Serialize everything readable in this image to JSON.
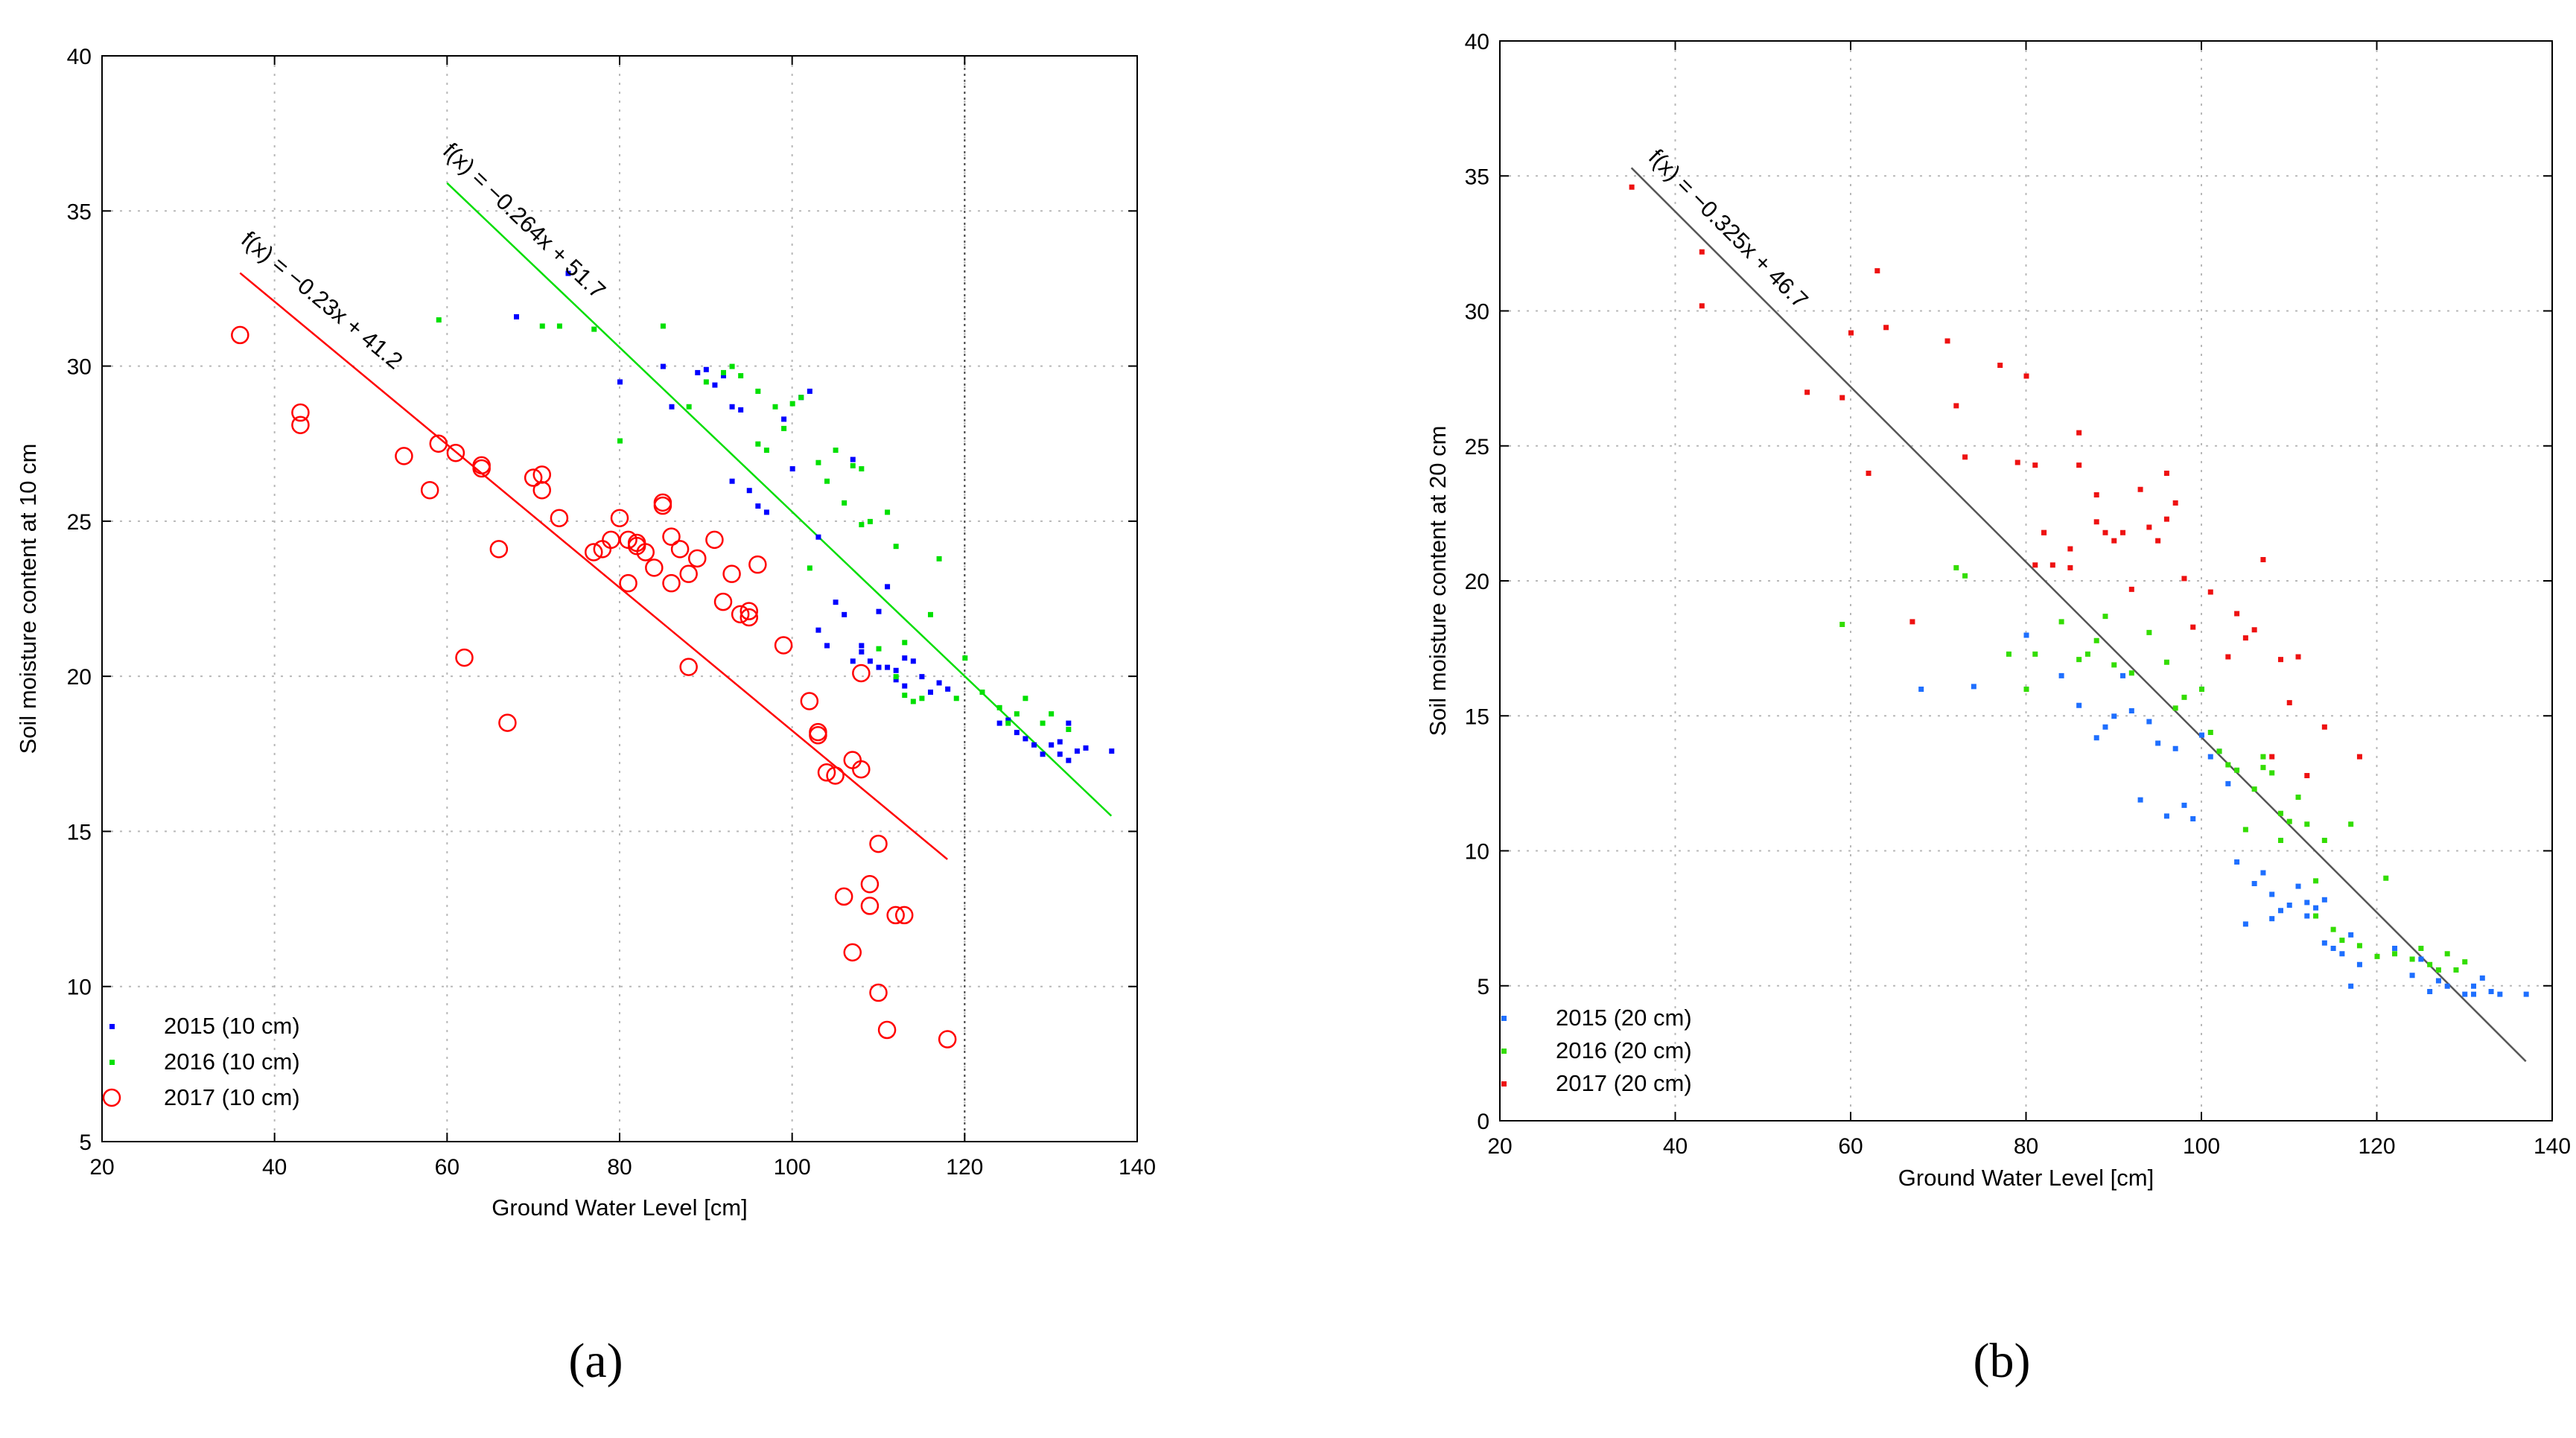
{
  "captions": {
    "a": "(a)",
    "b": "(b)"
  },
  "chart_data": [
    {
      "type": "scatter",
      "panel": "a",
      "xlabel": "Ground Water Level [cm]",
      "ylabel": "Soil moisture content at 10 cm",
      "xlim": [
        20,
        140
      ],
      "ylim": [
        5,
        40
      ],
      "xticks": [
        20,
        40,
        60,
        80,
        100,
        120,
        140
      ],
      "yticks": [
        5,
        10,
        15,
        20,
        25,
        30,
        35,
        40
      ],
      "grid": true,
      "legend_position": "bottom-left",
      "vline": 120,
      "series": [
        {
          "name": "2015 (10 cm)",
          "color": "#0000ff",
          "marker": "dot",
          "x": [
            68,
            74,
            80,
            85,
            86,
            89,
            90,
            91,
            92,
            93,
            93,
            94,
            95,
            96,
            97,
            99,
            100,
            101,
            102,
            103,
            103,
            104,
            105,
            106,
            107,
            107,
            108,
            108,
            109,
            110,
            110,
            111,
            111,
            112,
            112,
            113,
            113,
            114,
            115,
            116,
            117,
            118,
            124,
            125,
            126,
            127,
            128,
            129,
            130,
            131,
            131,
            132,
            132,
            133,
            134,
            137
          ],
          "y": [
            31.6,
            33.0,
            29.5,
            30.0,
            28.7,
            29.8,
            29.9,
            29.4,
            29.7,
            26.3,
            28.7,
            28.6,
            26.0,
            25.5,
            25.3,
            28.3,
            26.7,
            29.0,
            29.2,
            24.5,
            21.5,
            21.0,
            22.4,
            22.0,
            27.0,
            20.5,
            21.0,
            20.8,
            20.5,
            22.1,
            20.3,
            22.9,
            20.3,
            20.2,
            19.9,
            20.6,
            19.7,
            20.5,
            20.0,
            19.5,
            19.8,
            19.6,
            18.5,
            18.6,
            18.2,
            18.0,
            17.8,
            17.5,
            17.8,
            17.5,
            17.9,
            17.3,
            18.5,
            17.6,
            17.7,
            17.6
          ]
        },
        {
          "name": "2016 (10 cm)",
          "color": "#00e000",
          "marker": "dot",
          "x": [
            59,
            71,
            73,
            77,
            80,
            85,
            88,
            90,
            92,
            93,
            94,
            96,
            96,
            97,
            98,
            99,
            100,
            101,
            102,
            103,
            104,
            105,
            106,
            107,
            108,
            108,
            109,
            110,
            111,
            112,
            112,
            113,
            113,
            114,
            115,
            116,
            117,
            119,
            120,
            122,
            124,
            125,
            126,
            127,
            129,
            130,
            132
          ],
          "y": [
            31.5,
            31.3,
            31.3,
            31.2,
            27.6,
            31.3,
            28.7,
            29.5,
            29.8,
            30.0,
            29.7,
            27.5,
            29.2,
            27.3,
            28.7,
            28.0,
            28.8,
            29.0,
            23.5,
            26.9,
            26.3,
            27.3,
            25.6,
            26.8,
            24.9,
            26.7,
            25.0,
            20.9,
            25.3,
            24.2,
            20.0,
            21.1,
            19.4,
            19.2,
            19.3,
            22.0,
            23.8,
            19.3,
            20.6,
            19.5,
            19.0,
            18.5,
            18.8,
            19.3,
            18.5,
            18.8,
            18.3
          ]
        },
        {
          "name": "2017 (10 cm)",
          "color": "#ff0000",
          "marker": "circle",
          "x": [
            36,
            43,
            43,
            55,
            58,
            59,
            61,
            62,
            64,
            64,
            66,
            67,
            70,
            71,
            71,
            73,
            77,
            78,
            79,
            80,
            81,
            81,
            82,
            82,
            83,
            84,
            85,
            85,
            86,
            86,
            87,
            88,
            88,
            89,
            91,
            92,
            93,
            94,
            95,
            95,
            96,
            99,
            102,
            103,
            103,
            104,
            105,
            106,
            107,
            107,
            108,
            108,
            109,
            109,
            110,
            110,
            111,
            112,
            113,
            118
          ],
          "y": [
            31.0,
            28.5,
            28.1,
            27.1,
            26.0,
            27.5,
            27.2,
            20.6,
            26.7,
            26.8,
            24.1,
            18.5,
            26.4,
            26.0,
            26.5,
            25.1,
            24.0,
            24.1,
            24.4,
            25.1,
            24.4,
            23.0,
            24.3,
            24.2,
            24.0,
            23.5,
            25.6,
            25.5,
            23.0,
            24.5,
            24.1,
            20.3,
            23.3,
            23.8,
            24.4,
            22.4,
            23.3,
            22.0,
            22.1,
            21.9,
            23.6,
            21.0,
            19.2,
            18.1,
            18.2,
            16.9,
            16.8,
            12.9,
            17.3,
            11.1,
            20.1,
            17.0,
            12.6,
            13.3,
            9.8,
            14.6,
            8.6,
            12.3,
            12.3,
            8.3
          ]
        }
      ],
      "fits": [
        {
          "label": "f(x) = −0.264x + 51.7",
          "color": "#00dd00",
          "x": [
            60,
            137
          ],
          "y": [
            35.9,
            15.5
          ]
        },
        {
          "label": "f(x) = −0.23x + 41.2",
          "color": "#ff0000",
          "x": [
            36,
            118
          ],
          "y": [
            33.0,
            14.1
          ]
        }
      ]
    },
    {
      "type": "scatter",
      "panel": "b",
      "xlabel": "Ground Water Level [cm]",
      "ylabel": "Soil moisture content at 20 cm",
      "xlim": [
        20,
        140
      ],
      "ylim": [
        0,
        40
      ],
      "xticks": [
        20,
        40,
        60,
        80,
        100,
        120,
        140
      ],
      "yticks": [
        0,
        5,
        10,
        15,
        20,
        25,
        30,
        35,
        40
      ],
      "grid": true,
      "legend_position": "bottom-left",
      "series": [
        {
          "name": "2015 (20 cm)",
          "color": "#1e6fff",
          "marker": "dot",
          "x": [
            68,
            74,
            80,
            84,
            86,
            88,
            89,
            90,
            91,
            92,
            93,
            94,
            95,
            96,
            97,
            98,
            99,
            100,
            101,
            102,
            103,
            104,
            105,
            106,
            107,
            108,
            108,
            109,
            110,
            111,
            112,
            112,
            113,
            114,
            114,
            115,
            116,
            117,
            117,
            118,
            122,
            124,
            125,
            126,
            127,
            128,
            130,
            131,
            131,
            132,
            133,
            134,
            137
          ],
          "y": [
            16.0,
            16.1,
            18.0,
            16.5,
            15.4,
            14.2,
            14.6,
            15.0,
            16.5,
            15.2,
            11.9,
            14.8,
            14.0,
            11.3,
            13.8,
            11.7,
            11.2,
            14.3,
            13.5,
            13.7,
            12.5,
            9.6,
            7.3,
            8.8,
            9.2,
            7.5,
            8.4,
            7.8,
            8.0,
            8.7,
            8.1,
            7.6,
            7.9,
            6.6,
            8.2,
            6.4,
            6.2,
            6.9,
            5.0,
            5.8,
            6.4,
            5.4,
            6.0,
            4.8,
            5.2,
            5.0,
            4.7,
            4.7,
            5.0,
            5.3,
            4.8,
            4.7,
            4.7
          ]
        },
        {
          "name": "2016 (20 cm)",
          "color": "#33dd00",
          "marker": "dot",
          "x": [
            59,
            72,
            73,
            78,
            80,
            81,
            84,
            86,
            87,
            88,
            89,
            90,
            92,
            94,
            96,
            97,
            98,
            100,
            101,
            102,
            103,
            104,
            105,
            106,
            107,
            107,
            108,
            109,
            109,
            110,
            111,
            112,
            113,
            113,
            114,
            115,
            116,
            117,
            118,
            120,
            121,
            122,
            124,
            125,
            126,
            127,
            128,
            129,
            130
          ],
          "y": [
            18.4,
            20.5,
            20.2,
            17.3,
            16.0,
            17.3,
            18.5,
            17.1,
            17.3,
            17.8,
            18.7,
            16.9,
            16.6,
            18.1,
            17.0,
            15.3,
            15.7,
            16.0,
            14.4,
            13.7,
            13.2,
            13.0,
            10.8,
            12.3,
            13.1,
            13.5,
            12.9,
            10.4,
            11.4,
            11.1,
            12.0,
            11.0,
            8.9,
            7.6,
            10.4,
            7.1,
            6.7,
            11.0,
            6.5,
            6.1,
            9.0,
            6.2,
            6.0,
            6.4,
            5.8,
            5.6,
            6.2,
            5.6,
            5.9
          ]
        },
        {
          "name": "2017 (20 cm)",
          "color": "#ee1111",
          "marker": "dot",
          "x": [
            35,
            43,
            43,
            55,
            59,
            60,
            62,
            63,
            64,
            67,
            71,
            72,
            73,
            77,
            79,
            80,
            81,
            81,
            82,
            82,
            83,
            85,
            85,
            86,
            86,
            88,
            88,
            89,
            90,
            91,
            92,
            93,
            94,
            95,
            96,
            96,
            97,
            98,
            99,
            101,
            103,
            104,
            105,
            106,
            107,
            108,
            109,
            110,
            111,
            112,
            114,
            118
          ],
          "y": [
            34.6,
            32.2,
            30.2,
            27.0,
            26.8,
            29.2,
            24.0,
            31.5,
            29.4,
            18.5,
            28.9,
            26.5,
            24.6,
            28.0,
            24.4,
            27.6,
            24.3,
            20.6,
            21.8,
            21.8,
            20.6,
            21.2,
            20.5,
            25.5,
            24.3,
            23.2,
            22.2,
            21.8,
            21.5,
            21.8,
            19.7,
            23.4,
            22.0,
            21.5,
            24.0,
            22.3,
            22.9,
            20.1,
            18.3,
            19.6,
            17.2,
            18.8,
            17.9,
            18.2,
            20.8,
            13.5,
            17.1,
            15.5,
            17.2,
            12.8,
            14.6,
            13.5
          ]
        }
      ],
      "fits": [
        {
          "label": "f(x) = −0.325x + 46.7",
          "color": "#555555",
          "x": [
            35,
            137
          ],
          "y": [
            35.3,
            2.2
          ]
        }
      ]
    }
  ]
}
